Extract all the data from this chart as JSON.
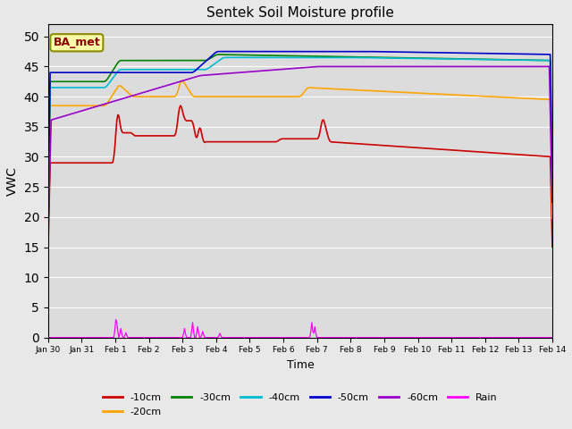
{
  "title": "Sentek Soil Moisture profile",
  "xlabel": "Time",
  "ylabel": "VWC",
  "annotation": "BA_met",
  "ylim": [
    0,
    52
  ],
  "yticks": [
    0,
    5,
    10,
    15,
    20,
    25,
    30,
    35,
    40,
    45,
    50
  ],
  "fig_bg": "#e8e8e8",
  "plot_bg": "#dcdcdc",
  "colors": {
    "-10cm": "#cc0000",
    "-20cm": "#ffa500",
    "-30cm": "#008000",
    "-40cm": "#00bcd4",
    "-50cm": "#0000cc",
    "-60cm": "#9900cc",
    "Rain": "#ff00ff"
  },
  "xtick_labels": [
    "Jan 30",
    "Jan 31",
    "Feb 1",
    "Feb 2",
    "Feb 3",
    "Feb 4",
    "Feb 5",
    "Feb 6",
    "Feb 7",
    "Feb 8",
    "Feb 9",
    "Feb 10",
    "Feb 11",
    "Feb 12",
    "Feb 13",
    "Feb 14"
  ],
  "n_points": 500
}
